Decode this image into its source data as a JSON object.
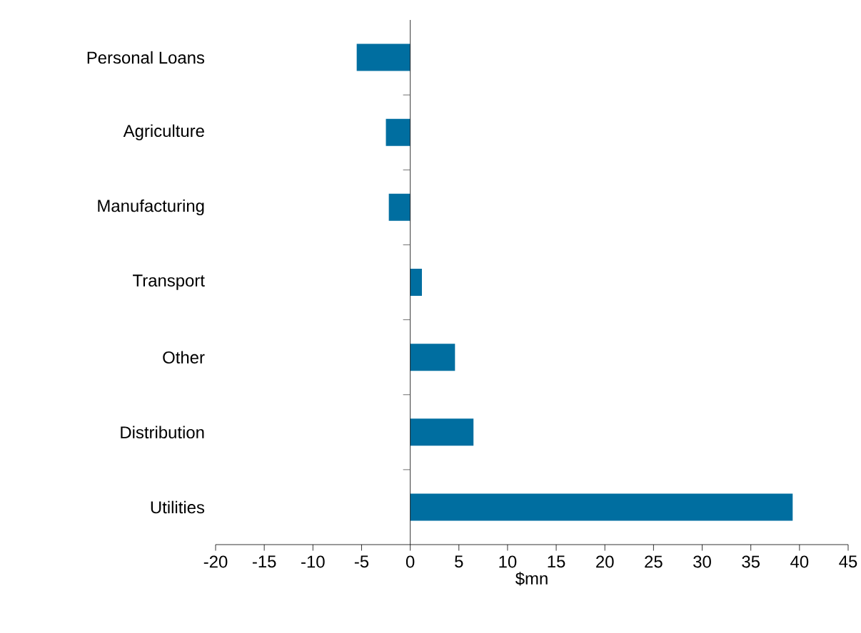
{
  "chart_data": {
    "type": "bar",
    "orientation": "horizontal",
    "categories": [
      "Personal Loans",
      "Agriculture",
      "Manufacturing",
      "Transport",
      "Other",
      "Distribution",
      "Utilities"
    ],
    "values": [
      -5.5,
      -2.5,
      -2.2,
      1.2,
      4.6,
      6.5,
      39.3
    ],
    "color": "#006ea0",
    "xlabel": "$mn",
    "xlim": [
      -20,
      45
    ],
    "xticks": [
      -20,
      -15,
      -10,
      -5,
      0,
      5,
      10,
      15,
      20,
      25,
      30,
      35,
      40,
      45
    ]
  }
}
